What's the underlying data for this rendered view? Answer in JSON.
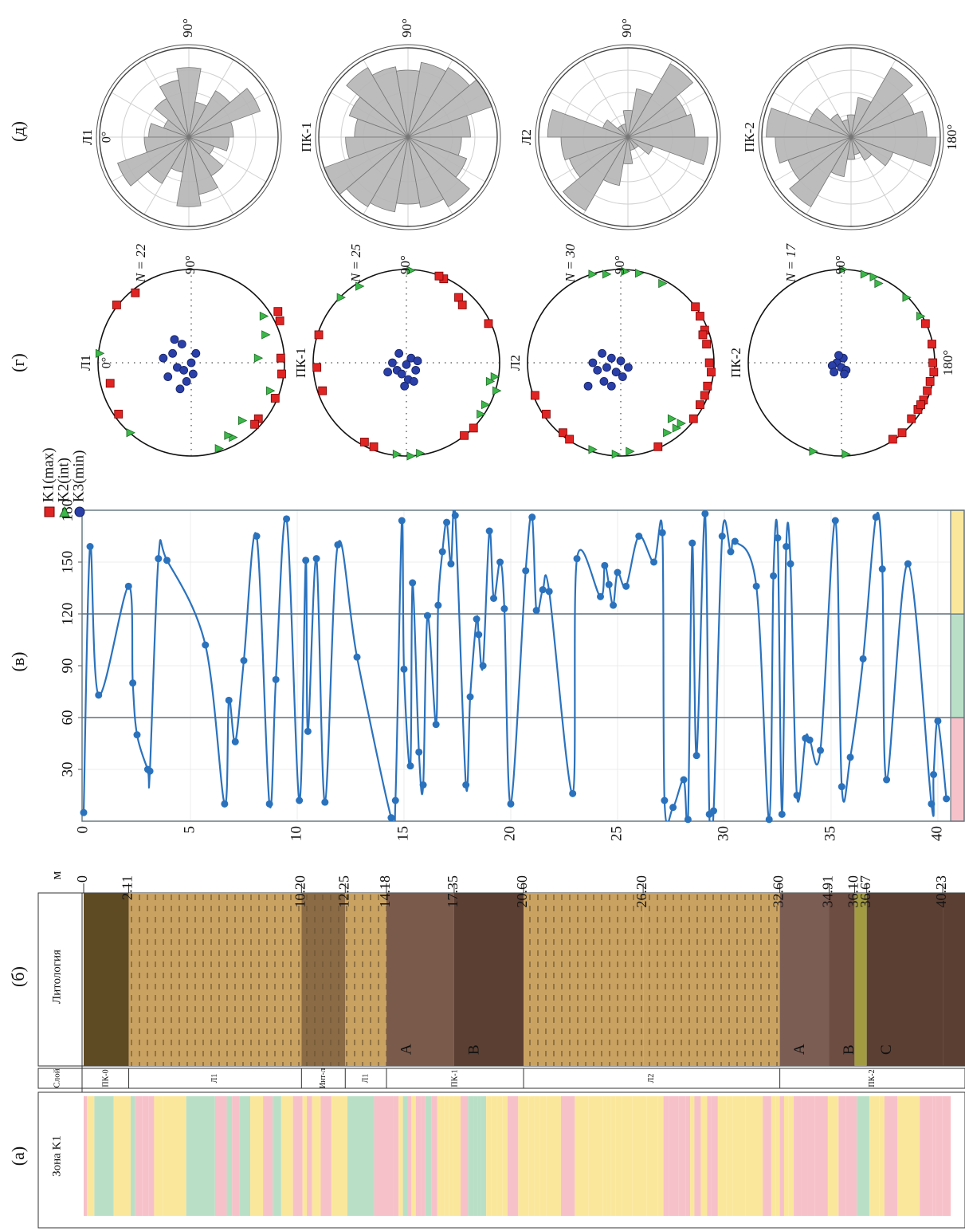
{
  "panel_labels": [
    "(а)",
    "(б)",
    "(в)",
    "(г)",
    "(д)"
  ],
  "zone_column": {
    "label": "Зона K1"
  },
  "lithology": {
    "label": "Литология",
    "layer_label": "Слой",
    "depth_label": "м",
    "boundaries": [
      0,
      2.11,
      {
        "value": 10.2,
        "label": "10.20"
      },
      12.25,
      14.18,
      17.35,
      {
        "value": 20.6,
        "label": "20.60"
      },
      {
        "value": 26.2,
        "label": "26.20"
      },
      {
        "value": 32.6,
        "label": "32.60"
      },
      34.91,
      {
        "value": 36.1,
        "label": "36.10"
      },
      36.67,
      40.23
    ],
    "units": [
      {
        "color": "#5e4a23",
        "layer": "ПК-0"
      },
      {
        "color": "#c9a262",
        "pattern": "dash",
        "layer": "Л1"
      },
      {
        "color": "#8b6b46",
        "pattern": "dash",
        "layer": "Инт-л"
      },
      {
        "color": "#c9a262",
        "pattern": "dash",
        "layer": "Л1"
      },
      {
        "color": "#7a5a4b",
        "layer": "ПК-1",
        "label": "A"
      },
      {
        "color": "#5b3f33",
        "layer": "ПК-1",
        "label": "B"
      },
      {
        "color": "#c9a262",
        "pattern": "dash",
        "layer": "Л2"
      },
      {
        "color": "#c9a262",
        "pattern": "dash",
        "layer": "Л2"
      },
      {
        "color": "#7b5d54",
        "layer": "ПК-2",
        "label": "A"
      },
      {
        "color": "#6d4c41",
        "layer": "ПК-2",
        "label": "B"
      },
      {
        "color": "#a39b42",
        "layer": "ПК-2"
      },
      {
        "color": "#5b3f33",
        "layer": "ПК-2",
        "label": "C"
      },
      {
        "color": "#5b3f33",
        "layer": "ПК-2"
      }
    ]
  },
  "depth_chart": {
    "type": "line",
    "color": "#2b72bd",
    "xlim": [
      0,
      40.6
    ],
    "xticks": [
      0,
      5,
      10,
      15,
      20,
      25,
      30,
      35,
      40
    ],
    "ylim": [
      0,
      180
    ],
    "yticks": [
      30,
      60,
      90,
      120,
      150,
      180
    ],
    "grid": true,
    "zones": [
      {
        "lo": 0,
        "hi": 60,
        "color": "#f7c1c9"
      },
      {
        "lo": 60,
        "hi": 120,
        "color": "#b9e0c7"
      },
      {
        "lo": 120,
        "hi": 180,
        "color": "#fbe79c"
      }
    ],
    "x": [
      0,
      0.3,
      0.7,
      2.1,
      2.3,
      2.5,
      3.0,
      3.1,
      3.5,
      3.9,
      5.7,
      6.6,
      6.8,
      7.1,
      7.5,
      8.1,
      8.7,
      9.0,
      9.5,
      10.1,
      10.4,
      10.5,
      10.9,
      11.3,
      11.9,
      12.8,
      14.4,
      14.6,
      14.9,
      15.0,
      15.3,
      15.4,
      15.7,
      15.9,
      16.1,
      16.5,
      16.6,
      16.8,
      17.0,
      17.2,
      17.4,
      17.9,
      18.1,
      18.4,
      18.5,
      18.7,
      19.0,
      19.2,
      19.5,
      19.7,
      20.0,
      20.7,
      21.0,
      21.2,
      21.5,
      21.8,
      22.9,
      23.1,
      24.2,
      24.4,
      24.6,
      24.8,
      25.0,
      25.4,
      26.0,
      26.7,
      27.1,
      27.2,
      27.6,
      28.1,
      28.3,
      28.5,
      28.7,
      29.1,
      29.3,
      29.5,
      29.9,
      30.3,
      30.5,
      31.5,
      32.1,
      32.3,
      32.5,
      32.7,
      32.9,
      33.1,
      33.4,
      33.8,
      34.0,
      34.5,
      35.2,
      35.5,
      35.9,
      36.5,
      37.1,
      37.4,
      37.6,
      38.6,
      39.7,
      39.8,
      40.0,
      40.4
    ],
    "values": [
      5,
      159,
      73,
      136,
      80,
      50,
      30,
      29,
      152,
      151,
      102,
      10,
      70,
      46,
      93,
      165,
      10,
      82,
      175,
      12,
      151,
      52,
      152,
      11,
      160,
      95,
      2,
      12,
      174,
      88,
      32,
      138,
      40,
      21,
      119,
      56,
      125,
      156,
      173,
      149,
      177,
      21,
      72,
      117,
      108,
      90,
      168,
      129,
      150,
      123,
      10,
      145,
      176,
      122,
      134,
      133,
      16,
      152,
      130,
      148,
      137,
      125,
      144,
      136,
      165,
      150,
      167,
      12,
      8,
      24,
      1,
      161,
      38,
      178,
      4,
      6,
      165,
      156,
      162,
      136,
      1,
      142,
      164,
      4,
      159,
      149,
      15,
      48,
      47,
      41,
      174,
      20,
      37,
      94,
      176,
      146,
      24,
      149,
      10,
      27,
      58,
      13
    ]
  },
  "stereonets": {
    "legend": [
      "K1(max)",
      "K2(int)",
      "K3(min)"
    ],
    "colors": [
      "#e02424",
      "#3cb84a",
      "#2a3fa8"
    ],
    "plots": [
      {
        "label": "Л1",
        "n_label": "N = 22",
        "top_label": "90°",
        "left_label": "0°",
        "k1": [
          [
            -0.8,
            -0.62
          ],
          [
            -0.6,
            -0.75
          ],
          [
            -0.87,
            0.22
          ],
          [
            -0.78,
            0.55
          ],
          [
            0.95,
            -0.45
          ],
          [
            0.93,
            -0.55
          ],
          [
            0.96,
            -0.05
          ],
          [
            0.9,
            0.38
          ],
          [
            0.72,
            0.6
          ],
          [
            0.68,
            0.66
          ],
          [
            0.97,
            0.12
          ]
        ],
        "k2": [
          [
            -0.65,
            0.75
          ],
          [
            -0.98,
            -0.1
          ],
          [
            0.78,
            -0.5
          ],
          [
            0.8,
            -0.3
          ],
          [
            0.72,
            -0.05
          ],
          [
            0.55,
            0.62
          ],
          [
            0.45,
            0.8
          ],
          [
            0.4,
            0.78
          ],
          [
            0.3,
            0.92
          ],
          [
            0.85,
            0.3
          ]
        ],
        "k3": [
          [
            -0.2,
            -0.1
          ],
          [
            -0.15,
            0.05
          ],
          [
            -0.1,
            -0.2
          ],
          [
            0.0,
            0.0
          ],
          [
            -0.25,
            0.15
          ],
          [
            -0.05,
            0.2
          ],
          [
            0.05,
            -0.1
          ],
          [
            -0.3,
            -0.05
          ],
          [
            -0.12,
            0.28
          ],
          [
            0.02,
            0.12
          ],
          [
            -0.18,
            -0.25
          ],
          [
            -0.08,
            0.08
          ]
        ]
      },
      {
        "label": "ПК-1",
        "n_label": "N = 25",
        "top_label": "90°",
        "k1": [
          [
            -0.94,
            -0.3
          ],
          [
            -0.96,
            0.05
          ],
          [
            -0.9,
            0.3
          ],
          [
            0.56,
            -0.7
          ],
          [
            0.6,
            -0.62
          ],
          [
            0.88,
            -0.42
          ],
          [
            0.4,
            -0.9
          ],
          [
            0.72,
            0.7
          ],
          [
            0.62,
            0.78
          ],
          [
            -0.35,
            0.9
          ],
          [
            -0.45,
            0.85
          ],
          [
            0.35,
            -0.93
          ]
        ],
        "k2": [
          [
            -0.5,
            -0.82
          ],
          [
            0.05,
            -0.99
          ],
          [
            0.95,
            0.15
          ],
          [
            0.97,
            0.3
          ],
          [
            0.85,
            0.45
          ],
          [
            0.8,
            0.55
          ],
          [
            0.9,
            0.2
          ],
          [
            -0.1,
            0.98
          ],
          [
            0.05,
            1.0
          ],
          [
            0.15,
            0.97
          ],
          [
            -0.7,
            -0.7
          ]
        ],
        "k3": [
          [
            -0.15,
            0
          ],
          [
            -0.1,
            0.08
          ],
          [
            0,
            0.02
          ],
          [
            0.05,
            -0.05
          ],
          [
            -0.05,
            0.12
          ],
          [
            0.1,
            0.08
          ],
          [
            -0.2,
            0.1
          ],
          [
            0.02,
            0.18
          ],
          [
            -0.08,
            -0.1
          ],
          [
            0.12,
            -0.02
          ],
          [
            -0.02,
            0.25
          ],
          [
            0.08,
            0.2
          ]
        ]
      },
      {
        "label": "Л2",
        "n_label": "N = 30",
        "top_label": "90°",
        "k1": [
          [
            0.8,
            -0.6
          ],
          [
            0.85,
            -0.5
          ],
          [
            0.9,
            -0.35
          ],
          [
            0.92,
            -0.2
          ],
          [
            0.95,
            0
          ],
          [
            0.97,
            0.1
          ],
          [
            0.9,
            0.35
          ],
          [
            0.85,
            0.45
          ],
          [
            0.78,
            0.6
          ],
          [
            -0.62,
            0.75
          ],
          [
            -0.55,
            0.82
          ],
          [
            -0.8,
            0.55
          ],
          [
            -0.92,
            0.35
          ],
          [
            0.4,
            0.9
          ],
          [
            0.88,
            -0.3
          ],
          [
            0.93,
            0.25
          ]
        ],
        "k2": [
          [
            -0.3,
            -0.95
          ],
          [
            -0.15,
            -0.95
          ],
          [
            0.05,
            -0.98
          ],
          [
            0.2,
            -0.96
          ],
          [
            0.45,
            -0.85
          ],
          [
            0.55,
            0.6
          ],
          [
            0.6,
            0.7
          ],
          [
            0.5,
            0.75
          ],
          [
            0.65,
            0.65
          ],
          [
            0.1,
            0.95
          ],
          [
            -0.05,
            0.98
          ],
          [
            -0.3,
            0.93
          ]
        ],
        "k3": [
          [
            -0.3,
            0
          ],
          [
            -0.25,
            0.08
          ],
          [
            -0.1,
            -0.05
          ],
          [
            -0.15,
            0.05
          ],
          [
            0,
            -0.02
          ],
          [
            -0.05,
            0.1
          ],
          [
            -0.2,
            -0.1
          ],
          [
            0.02,
            0.15
          ],
          [
            -0.18,
            0.2
          ],
          [
            -0.35,
            0.25
          ],
          [
            0.08,
            0.05
          ],
          [
            -0.1,
            0.25
          ]
        ]
      },
      {
        "label": "ПК-2",
        "n_label": "N = 17",
        "top_label": "90°",
        "right_label": "180°",
        "k1": [
          [
            0.97,
            -0.2
          ],
          [
            0.98,
            0
          ],
          [
            0.95,
            0.2
          ],
          [
            0.92,
            0.3
          ],
          [
            0.88,
            0.4
          ],
          [
            0.82,
            0.5
          ],
          [
            0.75,
            0.6
          ],
          [
            0.65,
            0.75
          ],
          [
            0.55,
            0.82
          ],
          [
            0.9,
            -0.42
          ],
          [
            0.99,
            0.1
          ],
          [
            0.85,
            0.45
          ]
        ],
        "k2": [
          [
            0.02,
            -1.0
          ],
          [
            0.25,
            -0.95
          ],
          [
            0.35,
            -0.92
          ],
          [
            0.4,
            -0.85
          ],
          [
            0.7,
            -0.7
          ],
          [
            -0.3,
            0.95
          ],
          [
            0.05,
            0.98
          ],
          [
            0.85,
            -0.5
          ]
        ],
        "k3": [
          [
            -0.05,
            0
          ],
          [
            0,
            0.05
          ],
          [
            -0.1,
            0.03
          ],
          [
            0.02,
            -0.05
          ],
          [
            -0.08,
            0.1
          ],
          [
            0.05,
            0.08
          ],
          [
            -0.03,
            -0.08
          ],
          [
            0.03,
            0.12
          ]
        ]
      }
    ]
  },
  "roses": {
    "color": "#b5b5b5",
    "rlim": [
      0,
      1
    ],
    "plots": [
      {
        "label": "Л1",
        "left_label": "0°",
        "top_label": "90°",
        "values": [
          0.45,
          0.3,
          0.5,
          0.65,
          0.78,
          0.4,
          0.6,
          0.85,
          0.5,
          0.45,
          0.3,
          0.5,
          0.65,
          0.78,
          0.4,
          0.6,
          0.85,
          0.5
        ]
      },
      {
        "label": "ПК-1",
        "top_label": "90°",
        "values": [
          0.6,
          0.7,
          0.9,
          0.8,
          0.75,
          0.85,
          0.9,
          1.0,
          0.7,
          0.6,
          0.7,
          0.9,
          0.8,
          0.75,
          0.85,
          0.9,
          1.0,
          0.7
        ]
      },
      {
        "label": "Л2",
        "top_label": "90°",
        "values": [
          0.9,
          0.3,
          0.15,
          0.15,
          0.3,
          0.55,
          0.95,
          0.7,
          0.75,
          0.9,
          0.3,
          0.15,
          0.15,
          0.3,
          0.55,
          0.95,
          0.7,
          0.75
        ]
      },
      {
        "label": "ПК-2",
        "right_label": "180°",
        "values": [
          0.95,
          0.5,
          0.3,
          0.2,
          0.25,
          0.45,
          0.9,
          0.75,
          0.85,
          0.95,
          0.5,
          0.3,
          0.2,
          0.25,
          0.45,
          0.9,
          0.75,
          0.85
        ]
      }
    ]
  }
}
